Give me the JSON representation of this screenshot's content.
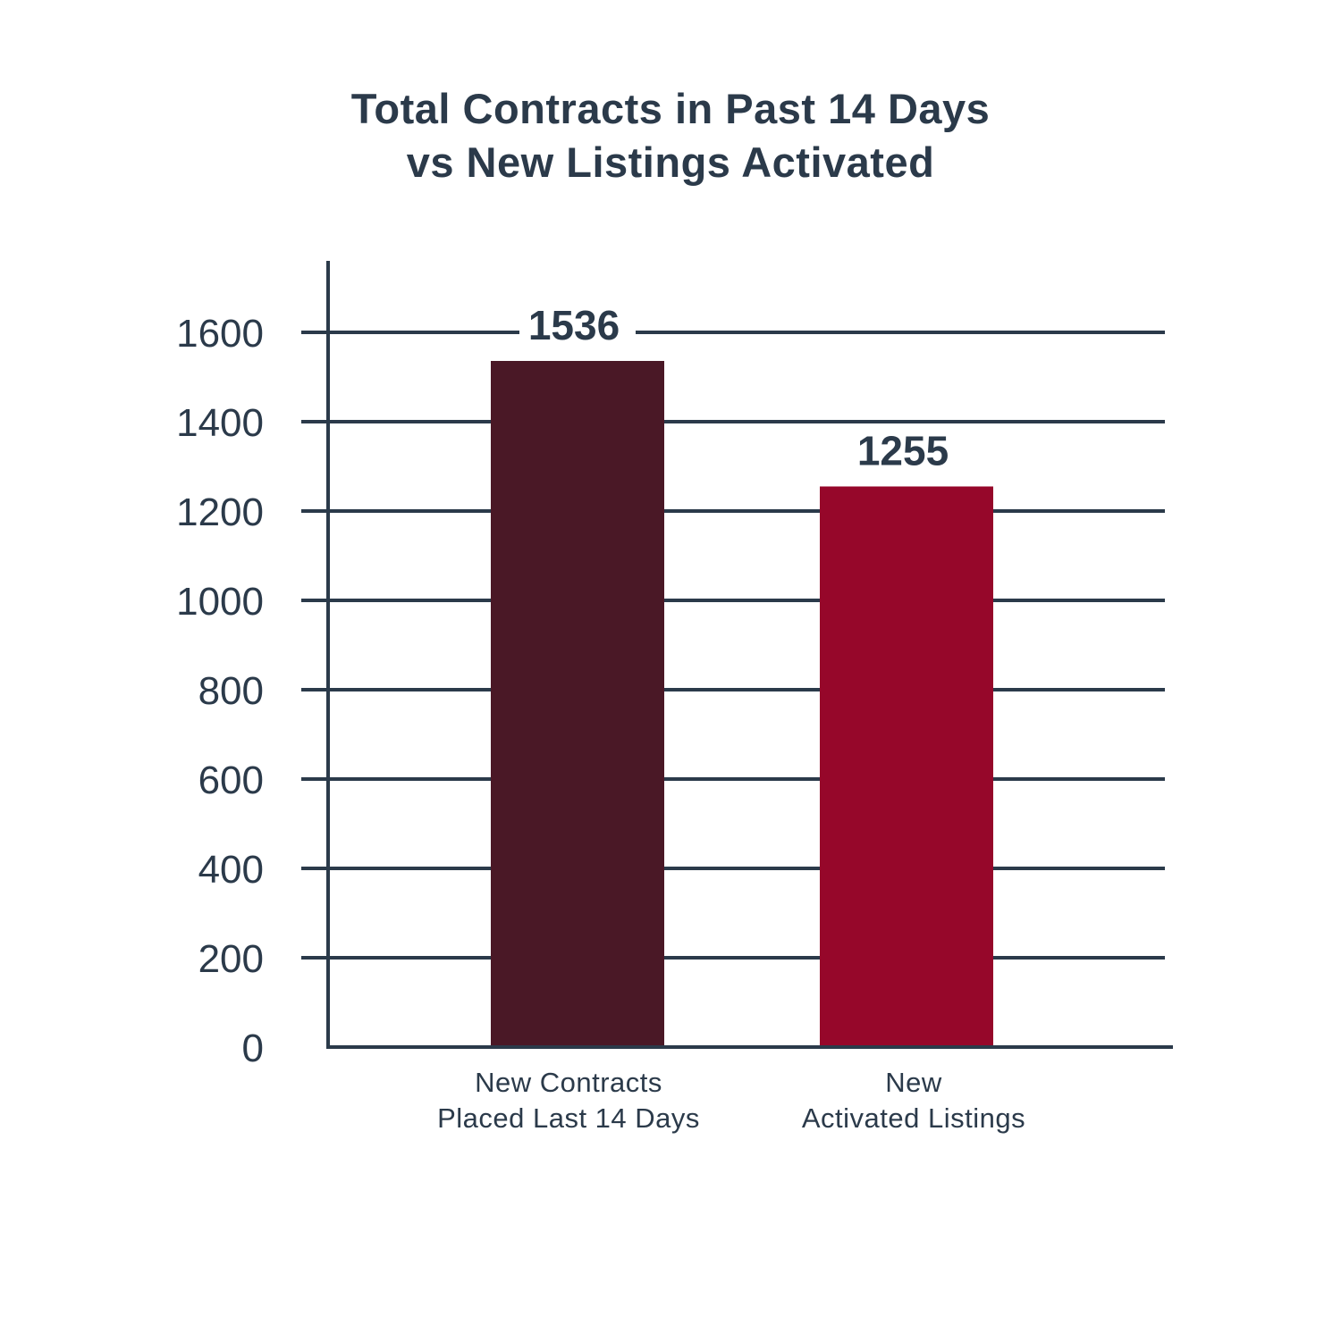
{
  "chart_data": {
    "type": "bar",
    "title_lines": [
      "Total Contracts in Past 14 Days",
      "vs New Listings Activated"
    ],
    "categories": [
      [
        "New Contracts",
        "Placed Last 14 Days"
      ],
      [
        "New",
        "Activated Listings"
      ]
    ],
    "values": [
      1536,
      1255
    ],
    "value_labels": [
      "1536",
      "1255"
    ],
    "bar_colors": [
      "#4a1826",
      "#96072a"
    ],
    "yticks": [
      0,
      200,
      400,
      600,
      800,
      1000,
      1200,
      1400,
      1600
    ],
    "ylim": [
      0,
      1760
    ],
    "grid": true,
    "xlabel": "",
    "ylabel": "",
    "axis_color": "#2b3a4a"
  }
}
